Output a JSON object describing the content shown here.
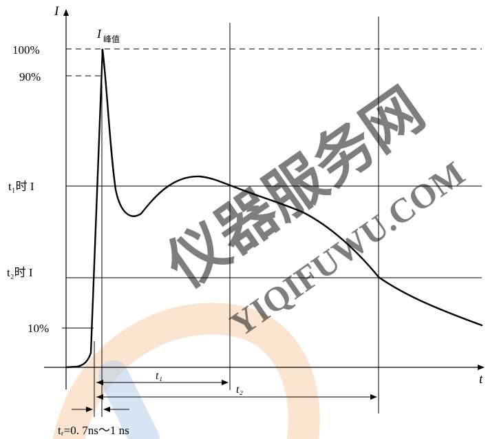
{
  "chart_data": {
    "type": "line",
    "title": "",
    "x_axis_label": "t",
    "y_axis_label": "I",
    "y_levels": [
      {
        "label": "100%",
        "dashed": true
      },
      {
        "label": "90%",
        "dashed": true
      },
      {
        "label": "t₁时 I",
        "dashed": false
      },
      {
        "label": "t₂时 I",
        "dashed": false
      },
      {
        "label": "10%",
        "dashed": false
      }
    ],
    "peak_label": {
      "main": "I",
      "sub": "峰值"
    },
    "intervals": [
      {
        "label": "t₁"
      },
      {
        "label": "t₂"
      }
    ],
    "rise_time_label": "tᵣ=0. 7ns～1 ns",
    "waveform_shape": "fast rise to peak current, dip, secondary hump, then decaying tail",
    "watermark": {
      "cn": "仪器服务网",
      "en": "YIQIFUWU.COM",
      "colors": [
        "#a9c4e6",
        "#f5c79a"
      ]
    }
  }
}
